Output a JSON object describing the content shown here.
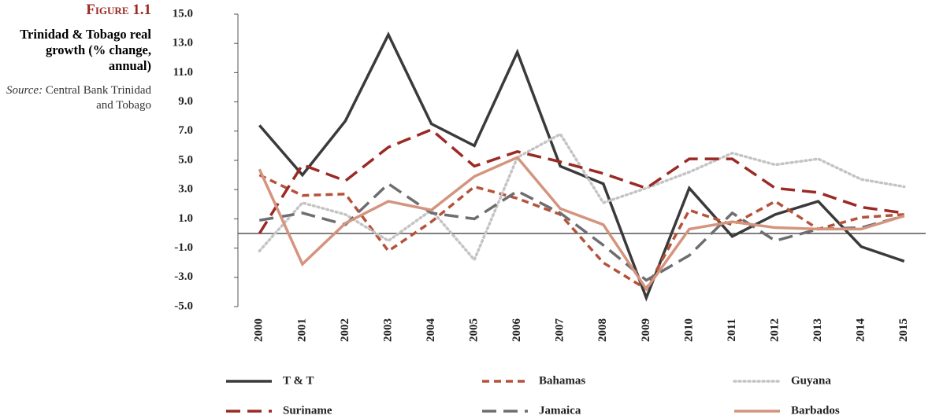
{
  "chart_data": {
    "type": "line",
    "figure_label": "Figure 1.1",
    "title": "Trinidad & Tobago real growth (% change, annual)",
    "source_label": "Source:",
    "source": "Central Bank Trinidad and Tobago",
    "categories": [
      "2000",
      "2001",
      "2002",
      "2003",
      "2004",
      "2005",
      "2006",
      "2007",
      "2008",
      "2009",
      "2010",
      "2011",
      "2012",
      "2013",
      "2014",
      "2015"
    ],
    "ylim": [
      -5,
      15
    ],
    "yticks": [
      {
        "value": 15,
        "label": "15.0"
      },
      {
        "value": 13,
        "label": "13.0"
      },
      {
        "value": 11,
        "label": "11.0"
      },
      {
        "value": 9,
        "label": "9.0"
      },
      {
        "value": 7,
        "label": "7.0"
      },
      {
        "value": 5,
        "label": "5.0"
      },
      {
        "value": 3,
        "label": "3.0"
      },
      {
        "value": 1,
        "label": "1.0"
      },
      {
        "value": -1,
        "label": "-1.0"
      },
      {
        "value": -3,
        "label": "-3.0"
      },
      {
        "value": -5,
        "label": "-5.0"
      }
    ],
    "grid": false,
    "series": [
      {
        "name": "T & T",
        "color": "#3a3a3a",
        "dash": "solid",
        "values": [
          7.4,
          4.0,
          7.7,
          13.6,
          7.5,
          6.0,
          12.4,
          4.6,
          3.4,
          -4.4,
          3.1,
          -0.2,
          1.3,
          2.2,
          -0.9,
          -1.9
        ]
      },
      {
        "name": "Bahamas",
        "color": "#b5523b",
        "dash": "dashed",
        "values": [
          4.0,
          2.6,
          2.7,
          -1.2,
          0.8,
          3.2,
          2.4,
          1.3,
          -2.0,
          -3.8,
          1.6,
          0.6,
          2.2,
          0.3,
          1.1,
          1.3
        ]
      },
      {
        "name": "Guyana",
        "color": "#c4c4c4",
        "dash": "dotted",
        "values": [
          -1.2,
          2.1,
          1.3,
          -0.5,
          1.6,
          -1.8,
          5.2,
          6.8,
          2.1,
          3.1,
          4.2,
          5.5,
          4.7,
          5.1,
          3.7,
          3.2
        ]
      },
      {
        "name": "Suriname",
        "color": "#9b2a25",
        "dash": "longdash",
        "values": [
          0.0,
          4.7,
          3.6,
          5.9,
          7.1,
          4.6,
          5.6,
          4.9,
          4.1,
          3.1,
          5.1,
          5.1,
          3.1,
          2.8,
          1.8,
          1.4
        ]
      },
      {
        "name": "Jamaica",
        "color": "#6d6e71",
        "dash": "longdash",
        "values": [
          0.9,
          1.4,
          0.6,
          3.4,
          1.4,
          1.0,
          2.9,
          1.4,
          -0.8,
          -3.2,
          -1.5,
          1.4,
          -0.5,
          0.3,
          0.4,
          1.2
        ]
      },
      {
        "name": "Barbados",
        "color": "#d4947e",
        "dash": "solid",
        "values": [
          4.4,
          -2.1,
          0.7,
          2.2,
          1.6,
          3.9,
          5.2,
          1.7,
          0.6,
          -3.8,
          0.3,
          0.8,
          0.4,
          0.3,
          0.3,
          1.2
        ]
      }
    ]
  }
}
